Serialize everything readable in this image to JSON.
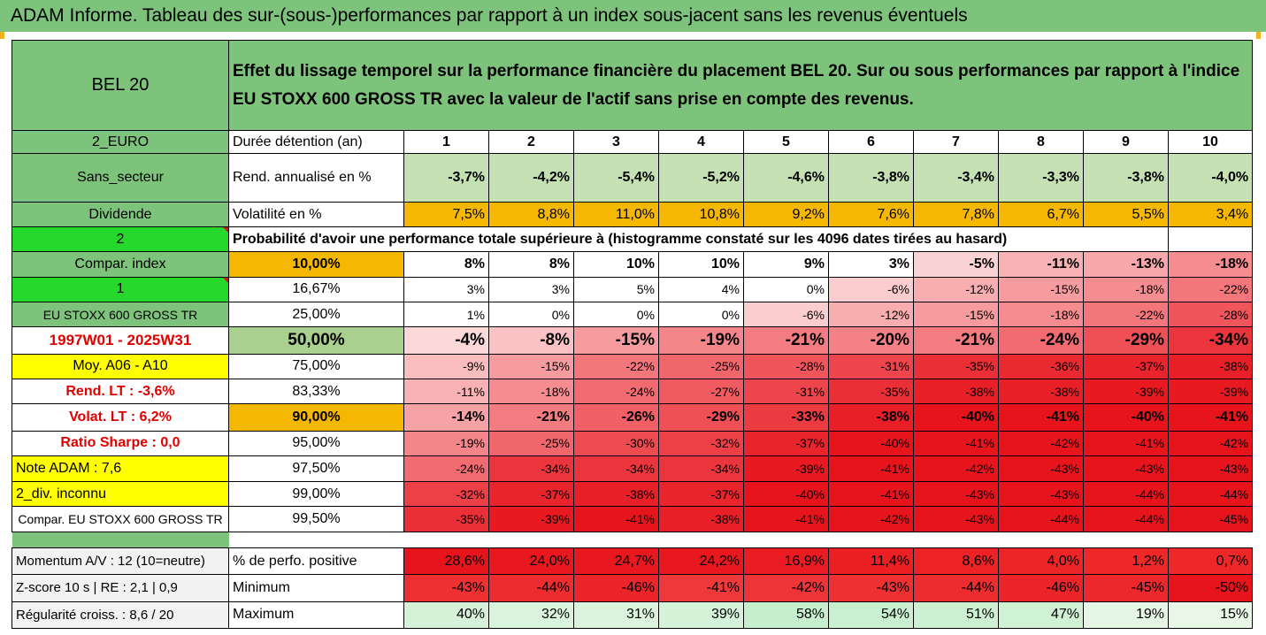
{
  "title": "ADAM Informe. Tableau des sur-(sous-)performances par rapport à un index sous-jacent sans les revenus éventuels",
  "header": {
    "asset": "BEL 20",
    "description": "Effet du lissage temporel sur la performance financière du placement BEL 20. Sur ou sous performances par rapport à l'indice EU STOXX 600 GROSS TR avec la valeur de l'actif sans prise en compte des revenus."
  },
  "sidebar": {
    "currency": "2_EURO",
    "sector": "Sans_secteur",
    "dividend": "Dividende",
    "dividend_code": "2",
    "compar_index": "Compar. index",
    "compar_code": "1",
    "index_name": "EU STOXX 600 GROSS TR",
    "period": "1997W01 - 2025W31",
    "moy": "Moy. A06 - A10",
    "rend_lt": "Rend. LT :   -3,6%",
    "volat_lt": "Volat. LT :   6,2%",
    "sharpe": "Ratio Sharpe :   0,0",
    "note": "Note ADAM : 7,6",
    "div": "2_div. inconnu",
    "compar_full": "Compar. EU STOXX 600 GROSS TR"
  },
  "labels": {
    "duree": "Durée détention (an)",
    "rend": "Rend. annualisé en %",
    "vol": "Volatilité en %",
    "proba": "Probabilité d'avoir une performance totale supérieure à (histogramme constaté sur les 4096 dates tirées au hasard)",
    "pct_pos": "% de perfo. positive",
    "min": "Minimum",
    "max": "Maximum"
  },
  "years": [
    "1",
    "2",
    "3",
    "4",
    "5",
    "6",
    "7",
    "8",
    "9",
    "10"
  ],
  "rend": [
    "-3,7%",
    "-4,2%",
    "-5,4%",
    "-5,2%",
    "-4,6%",
    "-3,8%",
    "-3,4%",
    "-3,3%",
    "-3,8%",
    "-4,0%"
  ],
  "vol": [
    "7,5%",
    "8,8%",
    "11,0%",
    "10,8%",
    "9,2%",
    "7,6%",
    "7,8%",
    "6,7%",
    "5,5%",
    "3,4%"
  ],
  "quantiles": [
    {
      "q": "10,00%",
      "v": [
        "8%",
        "8%",
        "10%",
        "10%",
        "9%",
        "3%",
        "-5%",
        "-11%",
        "-13%",
        "-18%"
      ]
    },
    {
      "q": "16,67%",
      "v": [
        "3%",
        "3%",
        "5%",
        "4%",
        "0%",
        "-6%",
        "-12%",
        "-15%",
        "-18%",
        "-22%"
      ]
    },
    {
      "q": "25,00%",
      "v": [
        "1%",
        "0%",
        "0%",
        "0%",
        "-6%",
        "-12%",
        "-15%",
        "-18%",
        "-22%",
        "-28%"
      ]
    },
    {
      "q": "50,00%",
      "v": [
        "-4%",
        "-8%",
        "-15%",
        "-19%",
        "-21%",
        "-20%",
        "-21%",
        "-24%",
        "-29%",
        "-34%"
      ]
    },
    {
      "q": "75,00%",
      "v": [
        "-9%",
        "-15%",
        "-22%",
        "-25%",
        "-28%",
        "-31%",
        "-35%",
        "-36%",
        "-37%",
        "-38%"
      ]
    },
    {
      "q": "83,33%",
      "v": [
        "-11%",
        "-18%",
        "-24%",
        "-27%",
        "-31%",
        "-35%",
        "-38%",
        "-38%",
        "-39%",
        "-39%"
      ]
    },
    {
      "q": "90,00%",
      "v": [
        "-14%",
        "-21%",
        "-26%",
        "-29%",
        "-33%",
        "-38%",
        "-40%",
        "-41%",
        "-40%",
        "-41%"
      ]
    },
    {
      "q": "95,00%",
      "v": [
        "-19%",
        "-25%",
        "-30%",
        "-32%",
        "-37%",
        "-40%",
        "-41%",
        "-42%",
        "-41%",
        "-42%"
      ]
    },
    {
      "q": "97,50%",
      "v": [
        "-24%",
        "-34%",
        "-34%",
        "-34%",
        "-39%",
        "-41%",
        "-42%",
        "-43%",
        "-43%",
        "-43%"
      ]
    },
    {
      "q": "99,00%",
      "v": [
        "-32%",
        "-37%",
        "-38%",
        "-37%",
        "-40%",
        "-41%",
        "-43%",
        "-43%",
        "-44%",
        "-44%"
      ]
    },
    {
      "q": "99,50%",
      "v": [
        "-35%",
        "-39%",
        "-41%",
        "-38%",
        "-41%",
        "-42%",
        "-43%",
        "-44%",
        "-44%",
        "-45%"
      ]
    }
  ],
  "bottom": {
    "momentum": "Momentum A/V : 12 (10=neutre)",
    "zscore": "Z-score 10 s  |  RE : 2,1  |  0,9",
    "regularite": "Régularité croiss. : 8,6 / 20",
    "pct_pos": [
      "28,6%",
      "24,0%",
      "24,7%",
      "24,2%",
      "16,9%",
      "11,4%",
      "8,6%",
      "4,0%",
      "1,2%",
      "0,7%"
    ],
    "min": [
      "-43%",
      "-44%",
      "-46%",
      "-41%",
      "-42%",
      "-43%",
      "-44%",
      "-46%",
      "-45%",
      "-50%"
    ],
    "max": [
      "40%",
      "32%",
      "31%",
      "39%",
      "58%",
      "54%",
      "51%",
      "47%",
      "19%",
      "15%"
    ]
  },
  "colors": {
    "header_green": "#7ec37b",
    "volatility_orange": "#f5b700",
    "rend_green": "#c5e0b3",
    "strong_red": "#e8141c",
    "light_green_max": "#e2f0d9"
  }
}
